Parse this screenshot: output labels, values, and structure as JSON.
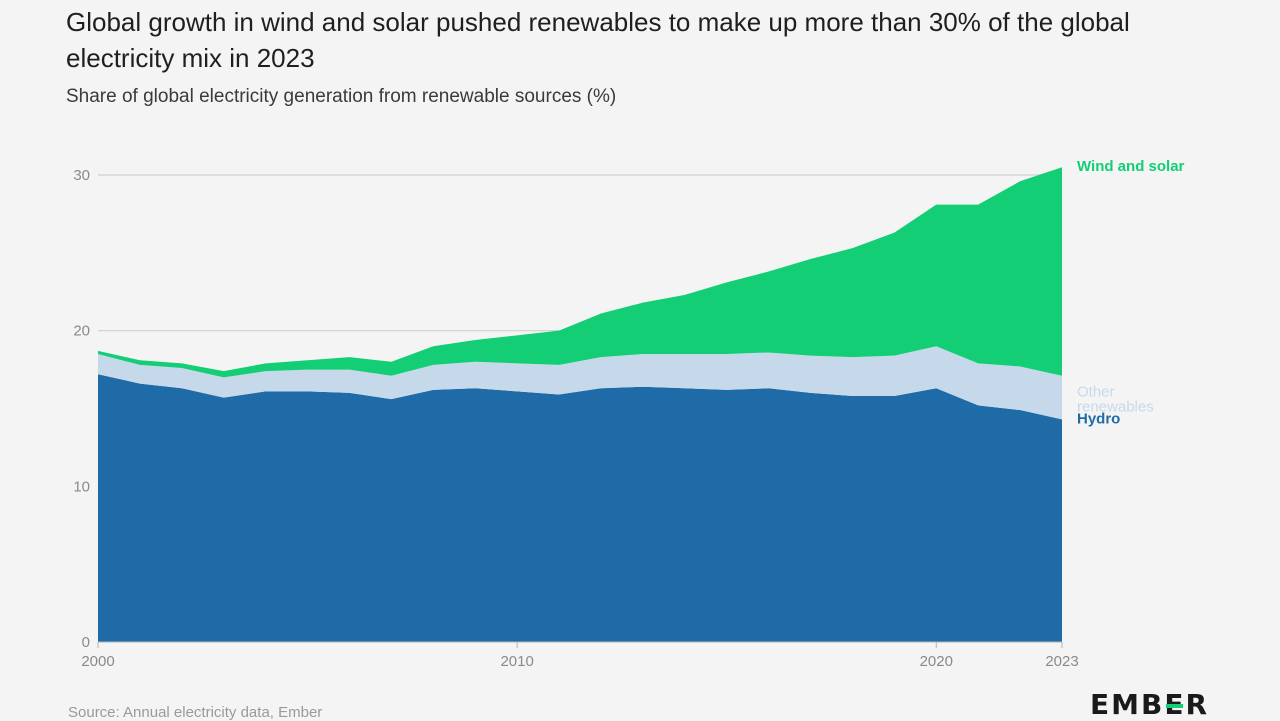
{
  "title": "Global growth in wind and solar pushed renewables to make up more than 30% of the global electricity mix in 2023",
  "subtitle": "Share of global electricity generation from renewable sources (%)",
  "source": "Source: Annual electricity data, Ember",
  "logo": "EMBER",
  "colors": {
    "hydro": "#1e6ba8",
    "other_renewables": "#c6d9ea",
    "wind_and_solar": "#13ce74",
    "grid": "#cfcfcf",
    "axis_text": "#8a8a8a"
  },
  "chart_data": {
    "type": "area",
    "stacked": true,
    "x": [
      2000,
      2001,
      2002,
      2003,
      2004,
      2005,
      2006,
      2007,
      2008,
      2009,
      2010,
      2011,
      2012,
      2013,
      2014,
      2015,
      2016,
      2017,
      2018,
      2019,
      2020,
      2021,
      2022,
      2023
    ],
    "series": [
      {
        "name": "Hydro",
        "color": "#1e6ba8",
        "values": [
          17.2,
          16.6,
          16.3,
          15.7,
          16.1,
          16.1,
          16.0,
          15.6,
          16.2,
          16.3,
          16.1,
          15.9,
          16.3,
          16.4,
          16.3,
          16.2,
          16.3,
          16.0,
          15.8,
          15.8,
          16.3,
          15.2,
          14.9,
          14.3
        ]
      },
      {
        "name": "Other renewables",
        "color": "#c6d9ea",
        "values": [
          1.3,
          1.2,
          1.3,
          1.3,
          1.3,
          1.4,
          1.5,
          1.5,
          1.6,
          1.7,
          1.8,
          1.9,
          2.0,
          2.1,
          2.2,
          2.3,
          2.3,
          2.4,
          2.5,
          2.6,
          2.7,
          2.7,
          2.8,
          2.8
        ]
      },
      {
        "name": "Wind and solar",
        "color": "#13ce74",
        "values": [
          0.2,
          0.3,
          0.3,
          0.4,
          0.5,
          0.6,
          0.8,
          0.9,
          1.2,
          1.4,
          1.8,
          2.2,
          2.8,
          3.3,
          3.8,
          4.6,
          5.2,
          6.2,
          7.0,
          7.9,
          9.1,
          10.2,
          11.9,
          13.4
        ]
      }
    ],
    "ylim": [
      0,
      30
    ],
    "yticks": [
      0,
      10,
      20,
      30
    ],
    "xticks": [
      2000,
      2010,
      2020,
      2023
    ],
    "grid": true,
    "legend": "right"
  }
}
